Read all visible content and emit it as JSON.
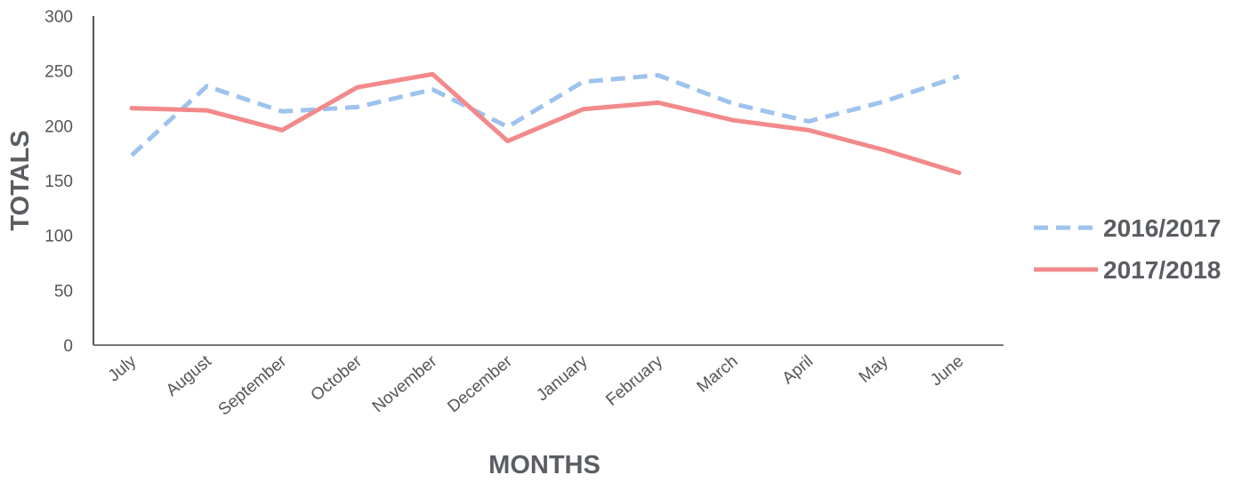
{
  "chart_data": {
    "type": "line",
    "categories": [
      "July",
      "August",
      "September",
      "October",
      "November",
      "December",
      "January",
      "February",
      "March",
      "April",
      "May",
      "June"
    ],
    "series": [
      {
        "name": "2016/2017",
        "color": "#9dc3ee",
        "dash": true,
        "values": [
          173,
          236,
          213,
          217,
          233,
          199,
          240,
          246,
          220,
          204,
          222,
          245
        ]
      },
      {
        "name": "2017/2018",
        "color": "#f2898a",
        "dash": false,
        "values": [
          216,
          214,
          196,
          235,
          247,
          186,
          215,
          221,
          205,
          196,
          178,
          157
        ]
      }
    ],
    "xlabel": "MONTHS",
    "ylabel": "TOTALS",
    "ylim": [
      0,
      300
    ],
    "yticks": [
      "0",
      "50",
      "100",
      "150",
      "200",
      "250",
      "300"
    ],
    "grid": false,
    "legend_position": "right"
  }
}
